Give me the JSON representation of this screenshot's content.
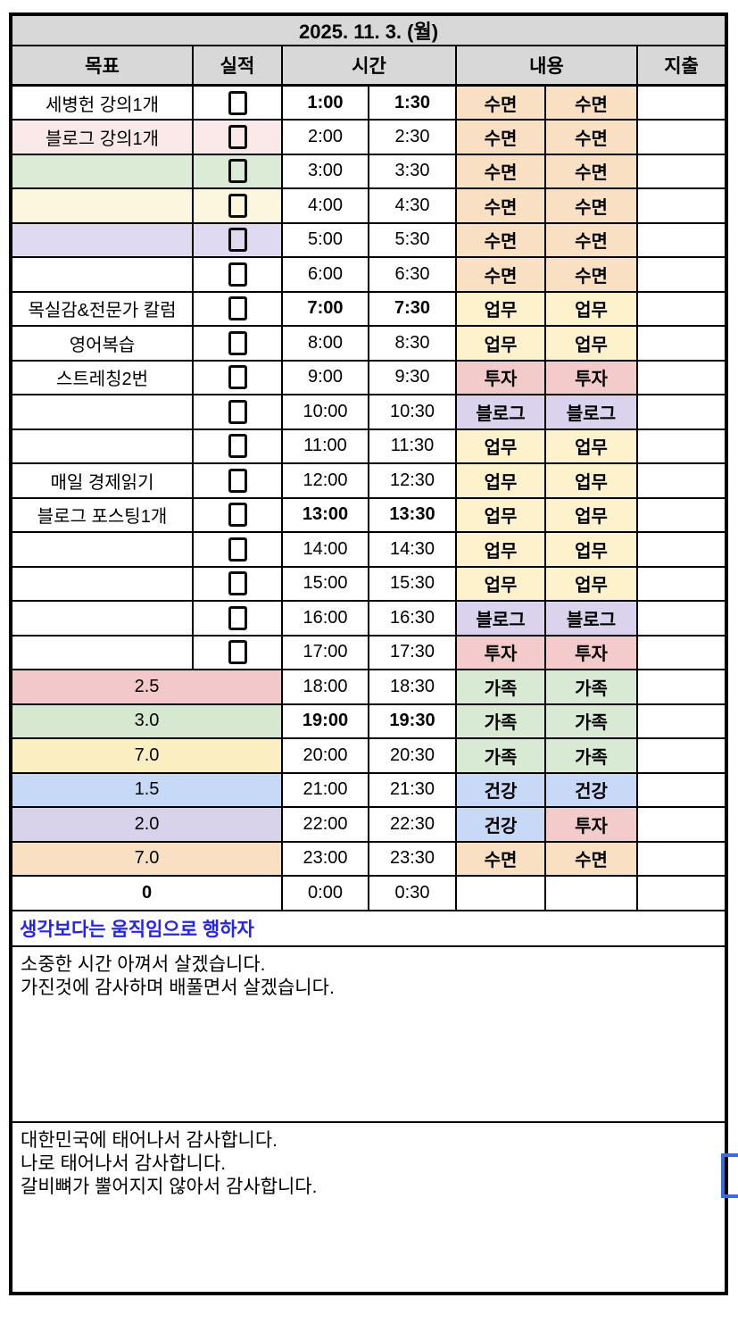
{
  "date_header": "2025. 11. 3. (월)",
  "columns": {
    "goal": "목표",
    "done": "실적",
    "time": "시간",
    "content": "내용",
    "expense": "지출"
  },
  "colors": {
    "header_bg": "#D8D8D8",
    "motto_blue": "#2222FF",
    "selection_blue": "#3B6BE2",
    "content_map": {
      "수면": "#FAE0C2",
      "업무": "#FEF2CC",
      "투자": "#F4CBCB",
      "블로그": "#DBD3ED",
      "가족": "#D8EAD3",
      "건강": "#C7D9F6"
    },
    "goal_bg_map": {
      "pink_light": "#FBE8E9",
      "green_light": "#DCEBD6",
      "cream_light": "#FDF6DE",
      "purple_light": "#DFDAF1",
      "pink": "#F2C8CB",
      "green": "#D6E8D0",
      "yellow": "#FBEFC2",
      "blue": "#C6D9F6",
      "purple": "#D8D2EA",
      "orange": "#FAE0C2"
    }
  },
  "schedule": {
    "rows": [
      {
        "merged": false,
        "goal": "세병헌 강의1개",
        "goal_bg": "",
        "checkbox": true,
        "t1": "1:00",
        "t2": "1:30",
        "bold_time": true,
        "c1": "수면",
        "c2": "수면",
        "expense": ""
      },
      {
        "merged": false,
        "goal": "블로그 강의1개",
        "goal_bg": "pink_light",
        "checkbox": true,
        "t1": "2:00",
        "t2": "2:30",
        "bold_time": false,
        "c1": "수면",
        "c2": "수면",
        "expense": ""
      },
      {
        "merged": false,
        "goal": "",
        "goal_bg": "green_light",
        "checkbox": true,
        "t1": "3:00",
        "t2": "3:30",
        "bold_time": false,
        "c1": "수면",
        "c2": "수면",
        "expense": ""
      },
      {
        "merged": false,
        "goal": "",
        "goal_bg": "cream_light",
        "checkbox": true,
        "t1": "4:00",
        "t2": "4:30",
        "bold_time": false,
        "c1": "수면",
        "c2": "수면",
        "expense": ""
      },
      {
        "merged": false,
        "goal": "",
        "goal_bg": "purple_light",
        "checkbox": true,
        "t1": "5:00",
        "t2": "5:30",
        "bold_time": false,
        "c1": "수면",
        "c2": "수면",
        "expense": ""
      },
      {
        "merged": false,
        "goal": "",
        "goal_bg": "",
        "checkbox": true,
        "t1": "6:00",
        "t2": "6:30",
        "bold_time": false,
        "c1": "수면",
        "c2": "수면",
        "expense": ""
      },
      {
        "merged": false,
        "goal": "목실감&전문가 칼럼",
        "goal_bg": "",
        "checkbox": true,
        "t1": "7:00",
        "t2": "7:30",
        "bold_time": true,
        "c1": "업무",
        "c2": "업무",
        "expense": ""
      },
      {
        "merged": false,
        "goal": "영어복습",
        "goal_bg": "",
        "checkbox": true,
        "t1": "8:00",
        "t2": "8:30",
        "bold_time": false,
        "c1": "업무",
        "c2": "업무",
        "expense": ""
      },
      {
        "merged": false,
        "goal": "스트레칭2번",
        "goal_bg": "",
        "checkbox": true,
        "t1": "9:00",
        "t2": "9:30",
        "bold_time": false,
        "c1": "투자",
        "c2": "투자",
        "expense": ""
      },
      {
        "merged": false,
        "goal": "",
        "goal_bg": "",
        "checkbox": true,
        "t1": "10:00",
        "t2": "10:30",
        "bold_time": false,
        "c1": "블로그",
        "c2": "블로그",
        "expense": ""
      },
      {
        "merged": false,
        "goal": "",
        "goal_bg": "",
        "checkbox": true,
        "t1": "11:00",
        "t2": "11:30",
        "bold_time": false,
        "c1": "업무",
        "c2": "업무",
        "expense": ""
      },
      {
        "merged": false,
        "goal": "매일 경제읽기",
        "goal_bg": "",
        "checkbox": true,
        "t1": "12:00",
        "t2": "12:30",
        "bold_time": false,
        "c1": "업무",
        "c2": "업무",
        "expense": ""
      },
      {
        "merged": false,
        "goal": "블로그 포스팅1개",
        "goal_bg": "",
        "checkbox": true,
        "t1": "13:00",
        "t2": "13:30",
        "bold_time": true,
        "c1": "업무",
        "c2": "업무",
        "expense": ""
      },
      {
        "merged": false,
        "goal": "",
        "goal_bg": "",
        "checkbox": true,
        "t1": "14:00",
        "t2": "14:30",
        "bold_time": false,
        "c1": "업무",
        "c2": "업무",
        "expense": ""
      },
      {
        "merged": false,
        "goal": "",
        "goal_bg": "",
        "checkbox": true,
        "t1": "15:00",
        "t2": "15:30",
        "bold_time": false,
        "c1": "업무",
        "c2": "업무",
        "expense": ""
      },
      {
        "merged": false,
        "goal": "",
        "goal_bg": "",
        "checkbox": true,
        "t1": "16:00",
        "t2": "16:30",
        "bold_time": false,
        "c1": "블로그",
        "c2": "블로그",
        "expense": ""
      },
      {
        "merged": false,
        "goal": "",
        "goal_bg": "",
        "checkbox": true,
        "t1": "17:00",
        "t2": "17:30",
        "bold_time": false,
        "c1": "투자",
        "c2": "투자",
        "expense": ""
      },
      {
        "merged": true,
        "goal": "2.5",
        "bold_goal": false,
        "goal_bg": "pink",
        "t1": "18:00",
        "t2": "18:30",
        "bold_time": false,
        "c1": "가족",
        "c2": "가족",
        "expense": ""
      },
      {
        "merged": true,
        "goal": "3.0",
        "bold_goal": false,
        "goal_bg": "green",
        "t1": "19:00",
        "t2": "19:30",
        "bold_time": true,
        "c1": "가족",
        "c2": "가족",
        "expense": ""
      },
      {
        "merged": true,
        "goal": "7.0",
        "bold_goal": false,
        "goal_bg": "yellow",
        "t1": "20:00",
        "t2": "20:30",
        "bold_time": false,
        "c1": "가족",
        "c2": "가족",
        "expense": ""
      },
      {
        "merged": true,
        "goal": "1.5",
        "bold_goal": false,
        "goal_bg": "blue",
        "t1": "21:00",
        "t2": "21:30",
        "bold_time": false,
        "c1": "건강",
        "c2": "건강",
        "expense": ""
      },
      {
        "merged": true,
        "goal": "2.0",
        "bold_goal": false,
        "goal_bg": "purple",
        "t1": "22:00",
        "t2": "22:30",
        "bold_time": false,
        "c1": "건강",
        "c2": "투자",
        "expense": ""
      },
      {
        "merged": true,
        "goal": "7.0",
        "bold_goal": false,
        "goal_bg": "orange",
        "t1": "23:00",
        "t2": "23:30",
        "bold_time": false,
        "c1": "수면",
        "c2": "수면",
        "expense": ""
      },
      {
        "merged": true,
        "goal": "0",
        "bold_goal": true,
        "goal_bg": "",
        "t1": "0:00",
        "t2": "0:30",
        "bold_time": false,
        "c1": "",
        "c2": "",
        "expense": ""
      }
    ]
  },
  "motto": "생각보다는 움직임으로 행하자",
  "sections": {
    "promise": {
      "lines": [
        "소중한 시간 아껴서 살겠습니다.",
        "가진것에 감사하며 배풀면서 살겠습니다."
      ]
    },
    "gratitude": {
      "lines": [
        "대한민국에 태어나서 감사합니다.",
        "나로 태어나서 감사합니다.",
        "갈비뼈가 뿔어지지 않아서 감사합니다."
      ]
    }
  }
}
